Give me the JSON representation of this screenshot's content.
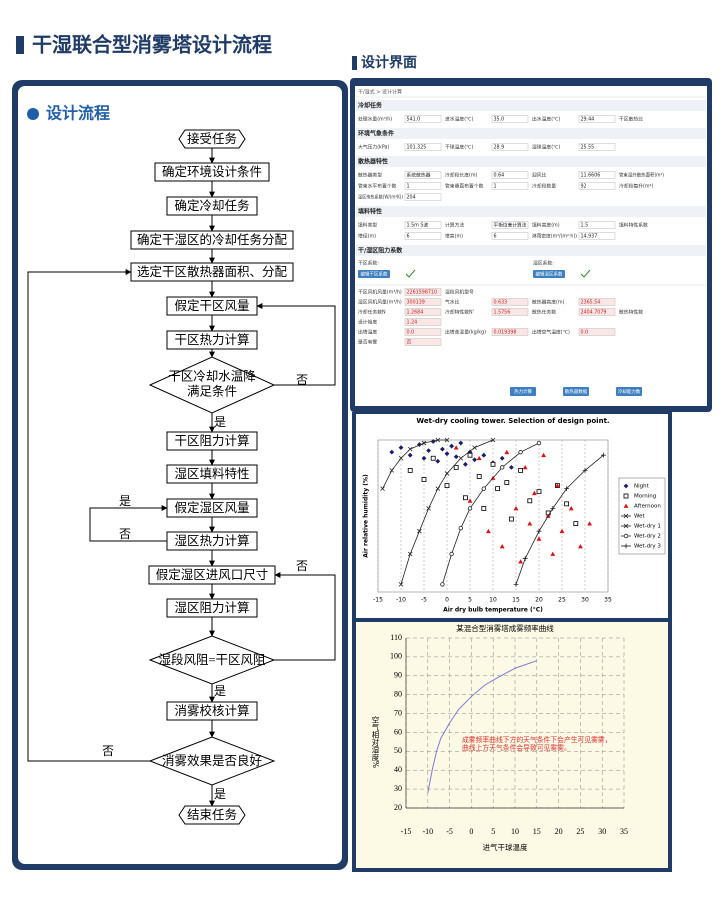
{
  "title": "干湿联合型消雾塔设计流程",
  "flow": {
    "heading": "设计流程",
    "nodes": [
      "接受任务",
      "确定环境设计条件",
      "确定冷却任务",
      "确定干湿区的冷却任务分配",
      "选定干区散热器面积、分配",
      "假定干区风量",
      "干区热力计算",
      [
        "干区冷却水温降",
        "满足条件"
      ],
      "干区阻力计算",
      "湿区填料特性",
      "假定湿区风量",
      "湿区热力计算",
      "假定湿区进风口尺寸",
      "湿区阻力计算",
      "湿段风阻=干区风阻",
      "消雾校核计算",
      "消雾效果是否良好",
      "结束任务"
    ],
    "edge_labels": [
      "否",
      "是",
      "是",
      "否",
      "否",
      "是",
      "否",
      "是"
    ]
  },
  "ui": {
    "heading": "设计界面",
    "breadcrumb": "干/湿式 > 设计计算",
    "sections": [
      {
        "title": "冷却任务",
        "rows": [
          [
            {
              "label": "处理水量(m³/h)",
              "value": "541.0"
            },
            {
              "label": "进水温度(℃)",
              "value": "35.0"
            },
            {
              "label": "出水温度(℃)",
              "value": "29.44"
            },
            {
              "label": "干区散热比"
            }
          ]
        ]
      },
      {
        "title": "环境气象条件",
        "rows": [
          [
            {
              "label": "大气压力(kPa)",
              "value": "101.325"
            },
            {
              "label": "干球温度(℃)",
              "value": "28.9"
            },
            {
              "label": "湿球温度(℃)",
              "value": "25.55"
            }
          ]
        ]
      },
      {
        "title": "散热器特性",
        "rows": [
          [
            {
              "label": "散热器类型",
              "value": "系统散热器"
            },
            {
              "label": "冷却段长度(m)",
              "value": "0.64"
            },
            {
              "label": "迎风比",
              "value": "11.6606"
            },
            {
              "label": "管束湿外散热面积(m²)"
            }
          ],
          [
            {
              "label": "管束水平布置个数",
              "value": "1"
            },
            {
              "label": "管束垂直布置个数",
              "value": "1"
            },
            {
              "label": "冷却段数量",
              "value": "92"
            },
            {
              "label": "冷却段每升(m²)"
            }
          ],
          [
            {
              "label": "湿区传热系数(W/(m²K))",
              "value": "204"
            }
          ]
        ]
      },
      {
        "title": "填料特性",
        "rows": [
          [
            {
              "label": "填料类型",
              "value": "1.5m S波"
            },
            {
              "label": "计算方法",
              "value": "平衡焓差计算法"
            },
            {
              "label": "填料高度(m)",
              "value": "1.5"
            },
            {
              "label": "填料特性系数"
            }
          ],
          [
            {
              "label": "塔径(m)",
              "value": "6"
            },
            {
              "label": "塔高(m)",
              "value": "6"
            },
            {
              "label": "淋雨密度(m³/(m²·h))",
              "value": "14.937"
            }
          ]
        ]
      }
    ],
    "resistance": {
      "title": "干/湿区阻力系数",
      "dry_label": "干区系数:",
      "wet_label": "湿区系数:",
      "dry_button": "编辑干区系数",
      "wet_button": "编辑湿区系数"
    },
    "results": [
      [
        {
          "label": "干区风机风量(m³/h)",
          "value": "2261598710"
        },
        {
          "label": "湿段风机型号"
        }
      ],
      [
        {
          "label": "湿区风机风量(m³/h)",
          "value": "300139"
        },
        {
          "label": "气水比",
          "value": "0.633"
        },
        {
          "label": "散热器高度(m)",
          "value": "2365.54"
        }
      ],
      [
        {
          "label": "冷却任务数N",
          "value": "1.2684"
        },
        {
          "label": "冷却特性数N'",
          "value": "1.5756"
        },
        {
          "label": "散热任务数",
          "value": "2404.7079"
        },
        {
          "label": "散热特性数"
        }
      ],
      [
        {
          "label": "设计裕度",
          "value": "1.24"
        }
      ],
      [
        {
          "label": "出塔温度",
          "value": "0.0"
        },
        {
          "label": "出塔含湿量(kg/kg)",
          "value": "0.019398"
        },
        {
          "label": "出塔空气温度(℃)",
          "value": "0.0"
        }
      ],
      [
        {
          "label": "是否有雾",
          "value": "否"
        }
      ]
    ],
    "buttons": [
      "热力计算",
      "散热器数据",
      "冷却能力数"
    ]
  },
  "chart_data": [
    {
      "type": "scatter",
      "title": "Wet-dry cooling tower. Selection of design point.",
      "x_label": "Air dry bulb temperature (°C)",
      "y_label": "Air relative humidity (%)",
      "xlim": [
        -15,
        35
      ],
      "xticks": [
        -15,
        -10,
        -5,
        0,
        5,
        10,
        15,
        20,
        25,
        30,
        35
      ],
      "ylim": [
        0,
        100
      ],
      "grid": true,
      "legend": "right",
      "series": [
        {
          "name": "Night",
          "color": "#1a1a70",
          "marker": "diamond",
          "x": [
            -12,
            -10,
            -8,
            -6,
            -5,
            -4,
            -3,
            -2,
            -1,
            0,
            1,
            2,
            3,
            4,
            5,
            6,
            8,
            10,
            12,
            14
          ],
          "values": [
            92,
            95,
            90,
            97,
            88,
            93,
            99,
            86,
            94,
            91,
            96,
            89,
            98,
            84,
            92,
            87,
            90,
            85,
            88,
            82
          ]
        },
        {
          "name": "Morning",
          "color": "#000000",
          "marker": "square",
          "x": [
            -8,
            -5,
            -3,
            0,
            2,
            4,
            5,
            7,
            8,
            10,
            11,
            13,
            14,
            16,
            18,
            20,
            22,
            24,
            26,
            28
          ],
          "values": [
            80,
            74,
            88,
            70,
            82,
            62,
            90,
            76,
            55,
            84,
            68,
            72,
            48,
            80,
            60,
            66,
            52,
            70,
            58,
            45
          ]
        },
        {
          "name": "Afternoon",
          "color": "#e01010",
          "marker": "triangle",
          "x": [
            2,
            5,
            7,
            9,
            10,
            12,
            13,
            15,
            16,
            17,
            18,
            19,
            20,
            21,
            22,
            23,
            24,
            25,
            27,
            29,
            31
          ],
          "values": [
            95,
            60,
            88,
            40,
            75,
            30,
            92,
            55,
            20,
            82,
            45,
            65,
            35,
            90,
            50,
            25,
            70,
            40,
            55,
            30,
            45
          ]
        },
        {
          "name": "Wet",
          "color": "#222222",
          "marker": "x",
          "line": true,
          "x": [
            -14,
            -12,
            -10,
            -8,
            -5,
            -2,
            0
          ],
          "values": [
            68,
            80,
            88,
            94,
            98,
            100,
            100
          ]
        },
        {
          "name": "Wet-dry 1",
          "color": "#222222",
          "marker": "x",
          "line": true,
          "x": [
            -10,
            -8,
            -6,
            -4,
            -2,
            0,
            3,
            6,
            10
          ],
          "values": [
            5,
            25,
            40,
            55,
            68,
            78,
            88,
            95,
            100
          ]
        },
        {
          "name": "Wet-dry 2",
          "color": "#222222",
          "marker": "circle",
          "line": true,
          "x": [
            -1,
            1,
            3,
            5,
            8,
            12,
            16,
            20
          ],
          "values": [
            5,
            25,
            42,
            55,
            68,
            82,
            92,
            98
          ]
        },
        {
          "name": "Wet-dry 3",
          "color": "#222222",
          "marker": "plus",
          "line": true,
          "x": [
            15,
            17,
            20,
            23,
            26,
            30,
            34
          ],
          "values": [
            5,
            22,
            40,
            55,
            68,
            80,
            90
          ]
        }
      ]
    },
    {
      "type": "line",
      "title": "某混合型消雾塔成雾频率曲线",
      "x_label": "进气干球温度",
      "y_label": "空气相对湿度%",
      "annotation": [
        "成雾频率曲线下方的天气条件下会产生可见雾雾，",
        "曲线上方天气条件会导致可见雾雾。"
      ],
      "xlim": [
        -15,
        35
      ],
      "xticks": [
        -15,
        -10,
        -5,
        0,
        5,
        10,
        15,
        20,
        25,
        30,
        35
      ],
      "ylim": [
        20,
        110
      ],
      "yticks": [
        20,
        30,
        40,
        50,
        60,
        70,
        80,
        90,
        100,
        110
      ],
      "grid": true,
      "series": [
        {
          "color": "#7b7bd6",
          "x": [
            -10,
            -9,
            -8,
            -7,
            -5,
            -3,
            0,
            3,
            6,
            10,
            15
          ],
          "values": [
            28,
            40,
            50,
            57,
            65,
            72,
            79,
            85,
            89,
            94,
            98
          ]
        }
      ]
    }
  ]
}
